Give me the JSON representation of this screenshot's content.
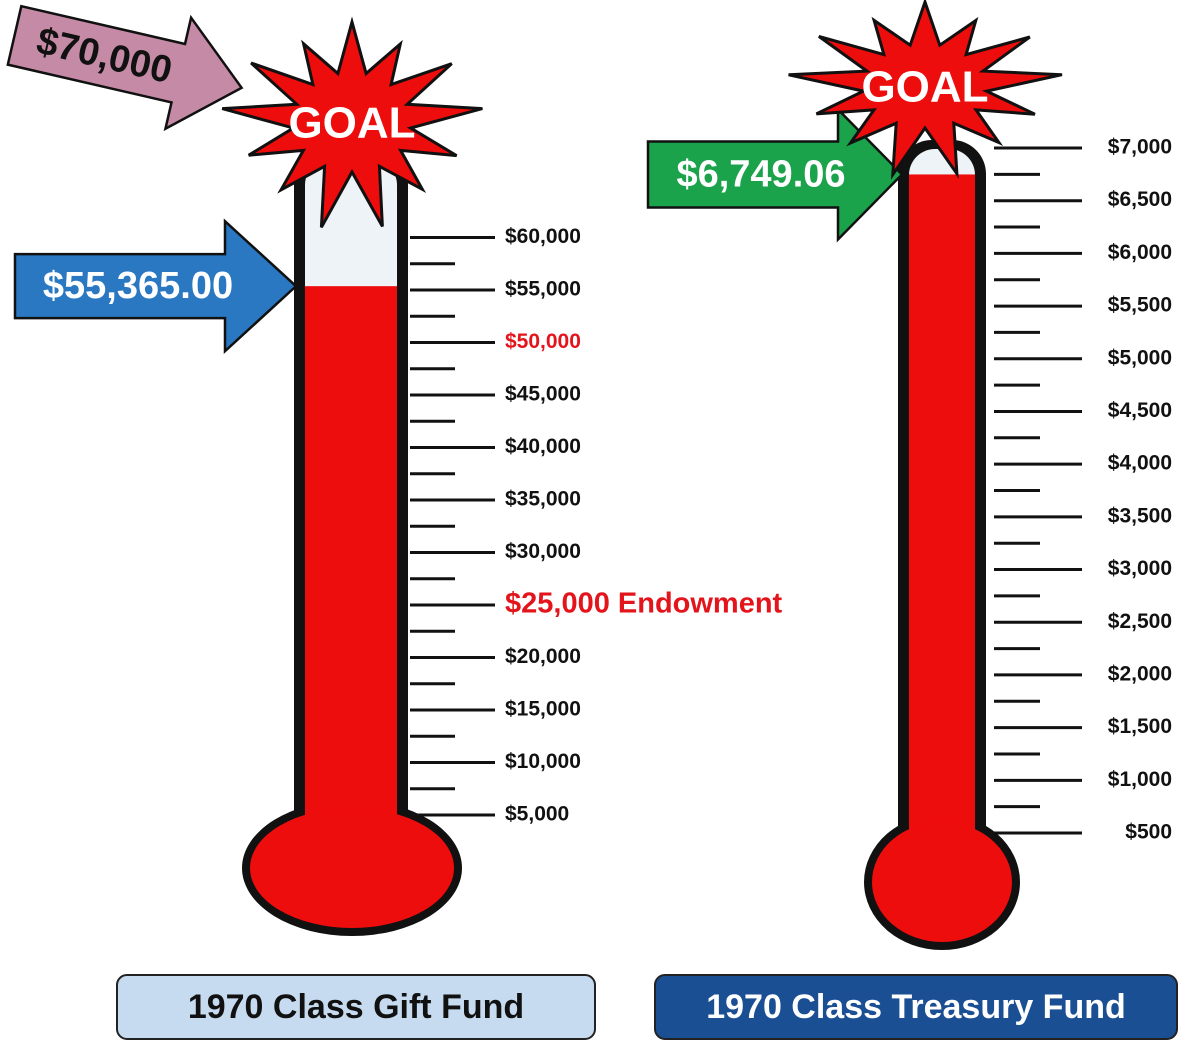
{
  "chart_data": [
    {
      "type": "thermometer",
      "title": "1970 Class Gift Fund",
      "values": [
        55365
      ],
      "value_labels": [
        "$55,365.00"
      ],
      "color": "#ee0d0d",
      "arrow_color": "#2a78c2",
      "title_box_color": "#c6dbef",
      "title_text_color": "#111111",
      "annotations": [
        "GOAL",
        "$70,000"
      ],
      "ylim": [
        0,
        65000
      ],
      "yticks": [
        {
          "value": 5000,
          "label": "$5,000"
        },
        {
          "value": 10000,
          "label": "$10,000"
        },
        {
          "value": 15000,
          "label": "$15,000"
        },
        {
          "value": 20000,
          "label": "$20,000"
        },
        {
          "value": 25000,
          "label": "$25,000 Endowment",
          "color": "#e3141b"
        },
        {
          "value": 30000,
          "label": "$30,000"
        },
        {
          "value": 35000,
          "label": "$35,000"
        },
        {
          "value": 40000,
          "label": "$40,000"
        },
        {
          "value": 45000,
          "label": "$45,000"
        },
        {
          "value": 50000,
          "label": "$50,000",
          "color": "#e3141b"
        },
        {
          "value": 55000,
          "label": "$55,000"
        },
        {
          "value": 60000,
          "label": "$60,000"
        }
      ],
      "minor_yticks": [
        7500,
        12500,
        17500,
        22500,
        27500,
        32500,
        37500,
        42500,
        47500,
        52500,
        57500
      ]
    },
    {
      "type": "thermometer",
      "title": "1970 Class Treasury Fund",
      "values": [
        6749.06
      ],
      "value_labels": [
        "$6,749.06"
      ],
      "color": "#ee0d0d",
      "arrow_color": "#1ba34c",
      "title_box_color": "#1b4f93",
      "title_text_color": "#ffffff",
      "annotations": [
        "GOAL"
      ],
      "ylim": [
        0,
        7000
      ],
      "yticks": [
        {
          "value": 500,
          "label": "$500"
        },
        {
          "value": 1000,
          "label": "$1,000"
        },
        {
          "value": 1500,
          "label": "$1,500"
        },
        {
          "value": 2000,
          "label": "$2,000"
        },
        {
          "value": 2500,
          "label": "$2,500"
        },
        {
          "value": 3000,
          "label": "$3,000"
        },
        {
          "value": 3500,
          "label": "$3,500"
        },
        {
          "value": 4000,
          "label": "$4,000"
        },
        {
          "value": 4500,
          "label": "$4,500"
        },
        {
          "value": 5000,
          "label": "$5,000"
        },
        {
          "value": 5500,
          "label": "$5,500"
        },
        {
          "value": 6000,
          "label": "$6,000"
        },
        {
          "value": 6500,
          "label": "$6,500"
        },
        {
          "value": 7000,
          "label": "$7,000"
        }
      ],
      "minor_yticks": [
        750,
        1250,
        1750,
        2250,
        2750,
        3250,
        3750,
        4250,
        4750,
        5250,
        5750,
        6250,
        6750
      ]
    }
  ]
}
